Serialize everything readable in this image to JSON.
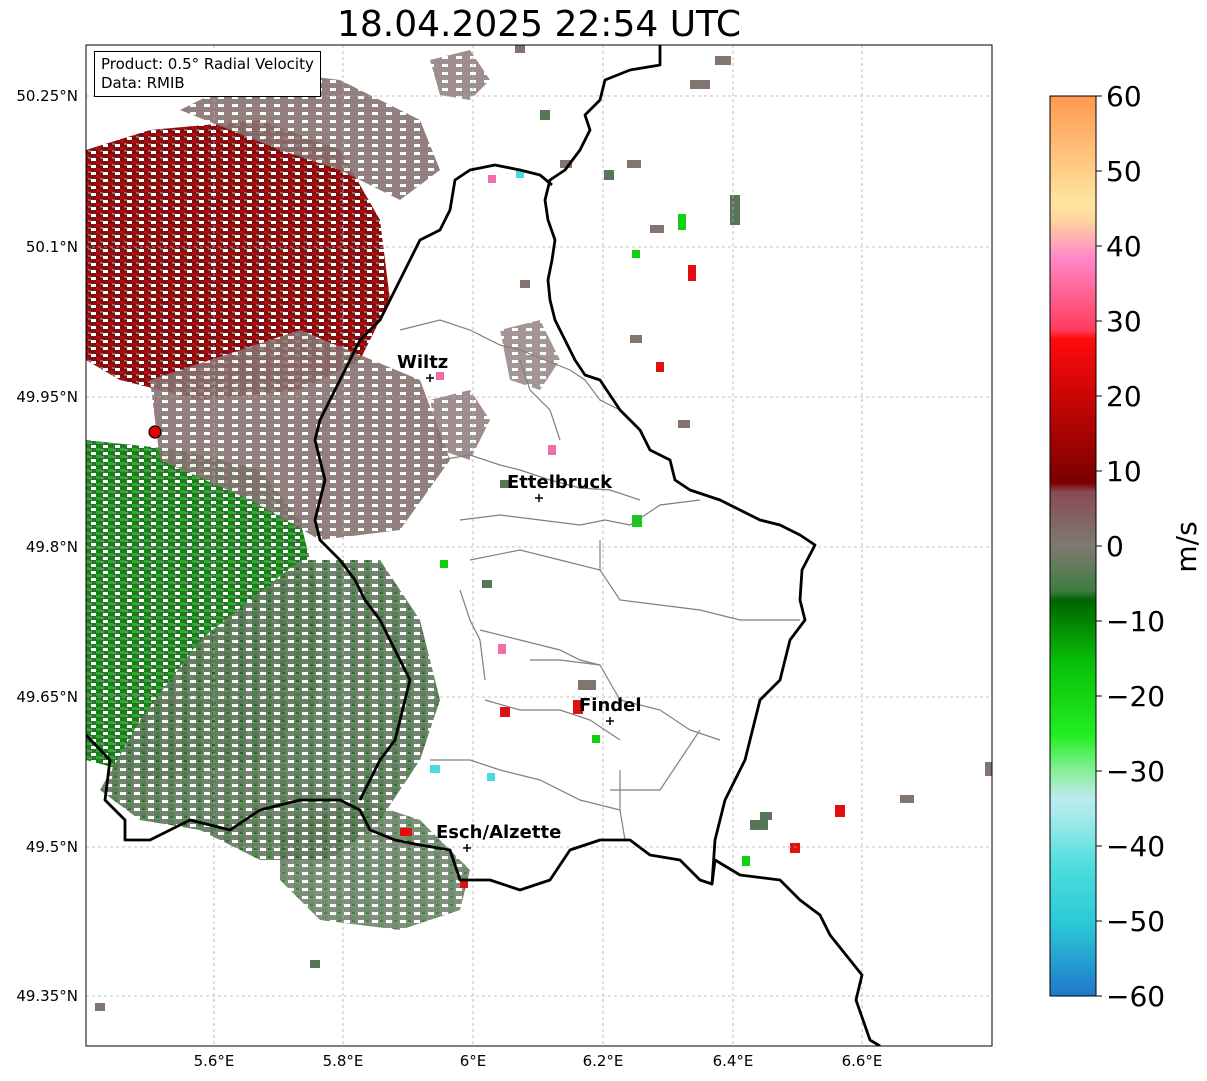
{
  "title": "18.04.2025 22:54 UTC",
  "info": {
    "product": "Product: 0.5° Radial Velocity",
    "data_source": "Data: RMIB"
  },
  "axes": {
    "lat_ticks": [
      "50.25°N",
      "50.1°N",
      "49.95°N",
      "49.8°N",
      "49.65°N",
      "49.5°N",
      "49.35°N"
    ],
    "lon_ticks": [
      "5.6°E",
      "5.8°E",
      "6°E",
      "6.2°E",
      "6.4°E",
      "6.6°E"
    ]
  },
  "cities": [
    {
      "name": "Wiltz"
    },
    {
      "name": "Ettelbruck"
    },
    {
      "name": "Findel"
    },
    {
      "name": "Esch/Alzette"
    }
  ],
  "colorbar": {
    "unit": "m/s",
    "min": -60,
    "max": 60,
    "tick_labels": [
      "60",
      "50",
      "40",
      "30",
      "20",
      "10",
      "0",
      "−10",
      "−20",
      "−30",
      "−40",
      "−50",
      "−60"
    ]
  },
  "colors": {
    "border": "#000000",
    "canton_line": "#808080",
    "radar_site": "#e00000"
  }
}
